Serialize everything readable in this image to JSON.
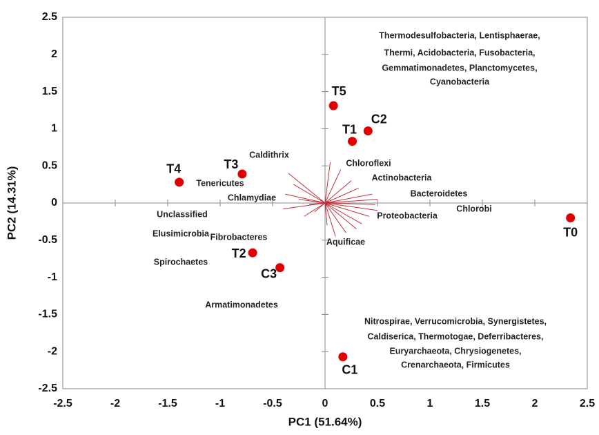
{
  "chart_data": {
    "type": "scatter",
    "xlabel": "PC1 (51.64%)",
    "ylabel": "PC2 (14.31%)",
    "xlim": [
      -2.5,
      2.5
    ],
    "ylim": [
      -2.5,
      2.5
    ],
    "xticks": [
      -2.5,
      -2,
      -1.5,
      -1,
      -0.5,
      0,
      0.5,
      1,
      1.5,
      2,
      2.5
    ],
    "yticks": [
      -2.5,
      -2,
      -1.5,
      -1,
      -0.5,
      0,
      0.5,
      1,
      1.5,
      2,
      2.5
    ],
    "color": "#e00000",
    "vector_color": "#c0303a",
    "points": {
      "labels": [
        "T5",
        "C2",
        "T1",
        "T4",
        "T3",
        "T0",
        "T2",
        "C3",
        "C1"
      ],
      "x": [
        0.08,
        0.41,
        0.26,
        -1.39,
        -0.79,
        2.34,
        -0.69,
        -0.43,
        0.17
      ],
      "y": [
        1.31,
        0.97,
        0.83,
        0.28,
        0.39,
        -0.2,
        -0.67,
        -0.87,
        -2.07
      ]
    },
    "vectors": {
      "x": [
        -0.35,
        -0.3,
        -0.38,
        -0.25,
        -0.15,
        -0.4,
        -0.2,
        0.05,
        0.15,
        0.25,
        0.32,
        0.45,
        0.5,
        0.48,
        0.5,
        0.42,
        0.35,
        0.3,
        0.2,
        0.1,
        -0.1,
        0.02
      ],
      "y": [
        0.4,
        0.25,
        0.12,
        0.05,
        -0.02,
        -0.08,
        -0.18,
        0.55,
        0.45,
        0.3,
        0.2,
        0.12,
        0.05,
        -0.02,
        -0.1,
        -0.18,
        -0.28,
        -0.35,
        -0.4,
        -0.45,
        -0.12,
        -0.3
      ]
    },
    "annotations": [
      "Thermodesulfobacteria, Lentisphaerae,",
      "Thermi, Acidobacteria,  Fusobacteria,",
      "Gemmatimonadetes, Planctomycetes,",
      "Cyanobacteria",
      "Nitrospirae, Verrucomicrobia, Synergistetes,",
      "Caldiserica, Thermotogae, Deferribacteres,",
      "Euryarchaeota, Chrysiogenetes,",
      "Crenarchaeota, Firmicutes",
      "Caldithrix",
      "Tenericutes",
      "Chlamydiae",
      "Unclassified",
      "Elusimicrobia",
      "Fibrobacteres",
      "Spirochaetes",
      "Armatimonadetes",
      "Chloroflexi",
      "Actinobacteria",
      "Bacteroidetes",
      "Proteobacteria",
      "Chlorobi",
      "Aquificae"
    ]
  }
}
